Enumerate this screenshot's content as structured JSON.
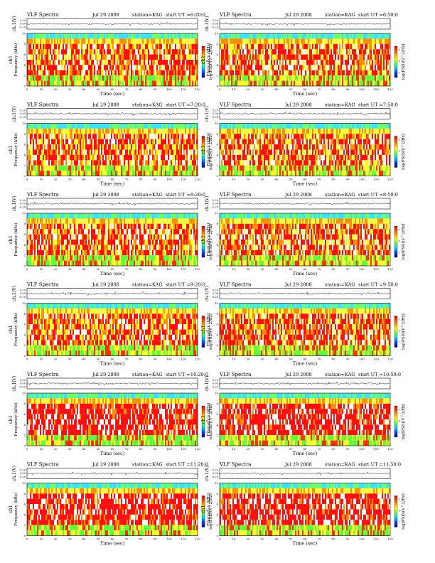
{
  "header_left": "VLF Spectra",
  "common": {
    "station": "station=KAG",
    "ch_label": "ch.1(V)",
    "ch_ticks": [
      "0.20",
      "0.00",
      "-0.20"
    ],
    "freq_label_top": "ch1",
    "freq_label": "Frequency (kHz)",
    "freq_ticks": [
      "0",
      "2",
      "4",
      "6",
      "8",
      "10"
    ],
    "time_ticks": [
      "0",
      "10",
      "20",
      "30",
      "40",
      "50",
      "60",
      "70",
      "80",
      "90",
      "100",
      "110",
      "120"
    ],
    "time_label": "Time (sec)",
    "cbar_label": "log(PSD)(V^2/Hz)",
    "cbar_ticks": [
      "-5",
      "-6",
      "-7"
    ]
  },
  "chart_data": [
    {
      "type": "heatmap",
      "date": "Jul 29 2008",
      "start": "start UT =6:20:0",
      "xlim": [
        0,
        120
      ],
      "ylim": [
        0,
        10
      ],
      "xlabel": "Time (sec)",
      "ylabel": "Frequency (kHz)"
    },
    {
      "type": "heatmap",
      "date": "Jul 29 2008",
      "start": "start UT =6:50:0",
      "xlim": [
        0,
        120
      ],
      "ylim": [
        0,
        10
      ],
      "xlabel": "Time (sec)",
      "ylabel": "Frequency (kHz)"
    },
    {
      "type": "heatmap",
      "date": "Jul 29 2008",
      "start": "start UT =7:20:0",
      "xlim": [
        0,
        120
      ],
      "ylim": [
        0,
        10
      ],
      "xlabel": "Time (sec)",
      "ylabel": "Frequency (kHz)"
    },
    {
      "type": "heatmap",
      "date": "Jul 29 2008",
      "start": "start UT =7:50:0",
      "xlim": [
        0,
        120
      ],
      "ylim": [
        0,
        10
      ],
      "xlabel": "Time (sec)",
      "ylabel": "Frequency (kHz)"
    },
    {
      "type": "heatmap",
      "date": "Jul 29 2008",
      "start": "start UT =8:20:0",
      "xlim": [
        0,
        120
      ],
      "ylim": [
        0,
        10
      ],
      "xlabel": "Time (sec)",
      "ylabel": "Frequency (kHz)"
    },
    {
      "type": "heatmap",
      "date": "Jul 29 2008",
      "start": "start UT =8:50:0",
      "xlim": [
        0,
        120
      ],
      "ylim": [
        0,
        10
      ],
      "xlabel": "Time (sec)",
      "ylabel": "Frequency (kHz)"
    },
    {
      "type": "heatmap",
      "date": "Jul 29 2008",
      "start": "start UT =9:20:0",
      "xlim": [
        0,
        120
      ],
      "ylim": [
        0,
        10
      ],
      "xlabel": "Time (sec)",
      "ylabel": "Frequency (kHz)"
    },
    {
      "type": "heatmap",
      "date": "Jul 29 2008",
      "start": "start UT =9:50:0",
      "xlim": [
        0,
        120
      ],
      "ylim": [
        0,
        10
      ],
      "xlabel": "Time (sec)",
      "ylabel": "Frequency (kHz)"
    },
    {
      "type": "heatmap",
      "date": "Jul 29 2008",
      "start": "start UT =10:20:0",
      "xlim": [
        0,
        120
      ],
      "ylim": [
        0,
        10
      ],
      "xlabel": "Time (sec)",
      "ylabel": "Frequency (kHz)"
    },
    {
      "type": "heatmap",
      "date": "Jul 29 2008",
      "start": "start UT =10:50:0",
      "xlim": [
        0,
        120
      ],
      "ylim": [
        0,
        10
      ],
      "xlabel": "Time (sec)",
      "ylabel": "Frequency (kHz)"
    },
    {
      "type": "heatmap",
      "date": "Jul 29 2008",
      "start": "start UT =11:20:0",
      "xlim": [
        0,
        120
      ],
      "ylim": [
        0,
        10
      ],
      "xlabel": "Time (sec)",
      "ylabel": "Frequency (kHz)"
    },
    {
      "type": "heatmap",
      "date": "Jul 29 2008",
      "start": "start UT =11:50:0",
      "xlim": [
        0,
        120
      ],
      "ylim": [
        0,
        10
      ],
      "xlabel": "Time (sec)",
      "ylabel": "Frequency (kHz)"
    }
  ]
}
